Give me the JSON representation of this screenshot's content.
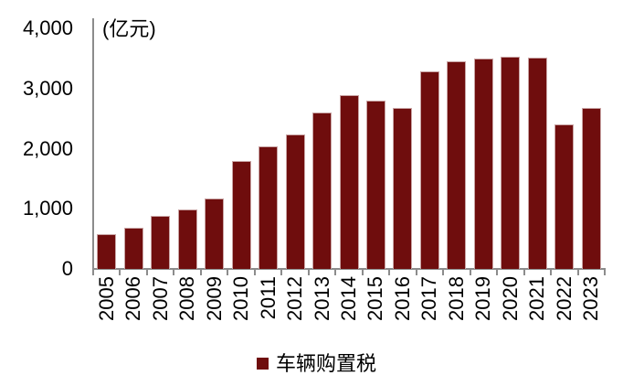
{
  "chart_data": {
    "type": "bar",
    "title": "",
    "unit_label": "(亿元)",
    "legend_label": "车辆购置税",
    "legend_position": "bottom-center",
    "xlabel": "",
    "ylabel": "亿元",
    "ylim": [
      0,
      4000
    ],
    "grid": false,
    "categories": [
      "2005",
      "2006",
      "2007",
      "2008",
      "2009",
      "2010",
      "2011",
      "2012",
      "2013",
      "2014",
      "2015",
      "2016",
      "2017",
      "2018",
      "2019",
      "2020",
      "2021",
      "2022",
      "2023"
    ],
    "series": [
      {
        "name": "车辆购置税",
        "values": [
          583,
          687,
          877,
          990,
          1164,
          1793,
          2045,
          2229,
          2596,
          2885,
          2793,
          2674,
          3281,
          3453,
          3498,
          3531,
          3520,
          2398,
          2681
        ]
      }
    ],
    "y_ticks": [
      {
        "value": 0,
        "label": "0"
      },
      {
        "value": 1000,
        "label": "1,000"
      },
      {
        "value": 2000,
        "label": "2,000"
      },
      {
        "value": 3000,
        "label": "3,000"
      },
      {
        "value": 4000,
        "label": "4,000"
      }
    ],
    "colors": {
      "bar_fill": "#6f0d0d",
      "bar_edge": "#c9a4a4",
      "axis": "#8c8c8c",
      "text": "#000000",
      "background": "#ffffff"
    }
  }
}
